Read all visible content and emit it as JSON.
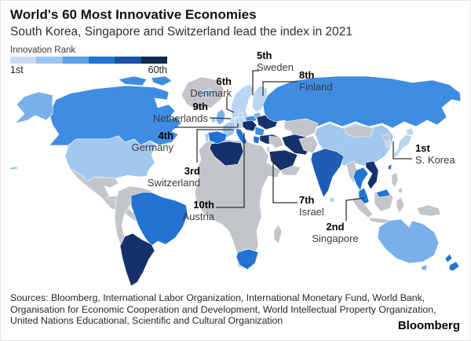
{
  "header": {
    "title": "World's 60 Most Innovative Economies",
    "subtitle": "South Korea, Singapore and Switzerland lead the index in 2021"
  },
  "legend": {
    "label": "Innovation Rank",
    "min_label": "1st",
    "max_label": "60th",
    "colors": [
      "#c7dbf2",
      "#9cc5ee",
      "#5b9fe4",
      "#2176d2",
      "#1c53a6",
      "#122a4e"
    ]
  },
  "chart_data": {
    "type": "heatmap",
    "map_projection": "world",
    "title": "World's 60 Most Innovative Economies",
    "subtitle": "South Korea, Singapore and Switzerland lead the index in 2021",
    "legend_title": "Innovation Rank",
    "scale": {
      "min_label": "1st",
      "max_label": "60th",
      "direction": "light = 1st (best), dark = 60th"
    },
    "callouts": [
      {
        "rank": "1st",
        "country": "S. Korea"
      },
      {
        "rank": "2nd",
        "country": "Singapore"
      },
      {
        "rank": "3rd",
        "country": "Switzerland"
      },
      {
        "rank": "4th",
        "country": "Germany"
      },
      {
        "rank": "5th",
        "country": "Sweden"
      },
      {
        "rank": "6th",
        "country": "Denmark"
      },
      {
        "rank": "7th",
        "country": "Israel"
      },
      {
        "rank": "8th",
        "country": "Finland"
      },
      {
        "rank": "9th",
        "country": "Netherlands"
      },
      {
        "rank": "10th",
        "country": "Austria"
      }
    ],
    "tier_colors": {
      "none": "#c2c6ca",
      "sea": "#ffffff",
      "t1": "#bcd6f2",
      "t2": "#a2c8ef",
      "t3": "#79b0ea",
      "t4": "#3f8de2",
      "t5": "#2273d2",
      "t6": "#1f5cb8",
      "t7": "#15316b"
    },
    "region_tiers": {
      "greenland": "none",
      "iceland": "t2",
      "canada": "t4",
      "canada-arctic-islands": "t4",
      "alaska": "t3",
      "usa": "t2",
      "hawaii": "t2",
      "mexico": "none",
      "central-america": "none",
      "cuba": "none",
      "hispaniola": "none",
      "south-america-west": "none",
      "brazil": "t5",
      "argentina-chile": "t7",
      "africa": "none",
      "algeria": "t7",
      "south-africa": "t5",
      "madagascar": "none",
      "norway-sweden": "t1",
      "finland": "t1",
      "denmark": "t1",
      "uk": "t3",
      "ireland": "t2",
      "benelux": "t1",
      "germany": "t1",
      "france": "t2",
      "spain": "t5",
      "portugal": "t2",
      "italy": "t5",
      "switzerland": "t1",
      "central-europe-cluster": "t7",
      "poland": "t4",
      "baltics": "t3",
      "ukraine": "t7",
      "romania-bulgaria": "t4",
      "greece": "t5",
      "turkey": "t7",
      "russia": "t4",
      "kazakhstan": "none",
      "caspian-sea": "sea",
      "iraq-syria": "none",
      "israel": "t1",
      "iran": "t7",
      "saudi-arabia": "t7",
      "yemen-oman": "none",
      "pakistan-afghanistan": "none",
      "india": "t6",
      "china": "t2",
      "mongolia": "none",
      "myanmar": "none",
      "thailand": "t5",
      "vietnam": "t7",
      "malay-peninsula": "t5",
      "sumatra": "none",
      "java": "none",
      "borneo": "none",
      "borneo-malaysia": "t5",
      "sulawesi": "none",
      "new-guinea": "none",
      "philippines": "none",
      "taiwan": "t5",
      "japan": "t1",
      "south-korea": "t1",
      "north-korea": "none",
      "sri-lanka": "t2",
      "australia": "t3",
      "tasmania": "t3",
      "new-zealand-north": "t5",
      "new-zealand-south": "t5"
    }
  },
  "footer": {
    "sources_lines": [
      "Sources: Bloomberg, International Labor Organization, International Monetary Fund, World Bank,",
      "Organisation for Economic Cooperation and Development, World Intellectual Property Organization,",
      "United Nations Educational, Scientific and Cultural Organization"
    ],
    "logo": "Bloomberg"
  }
}
